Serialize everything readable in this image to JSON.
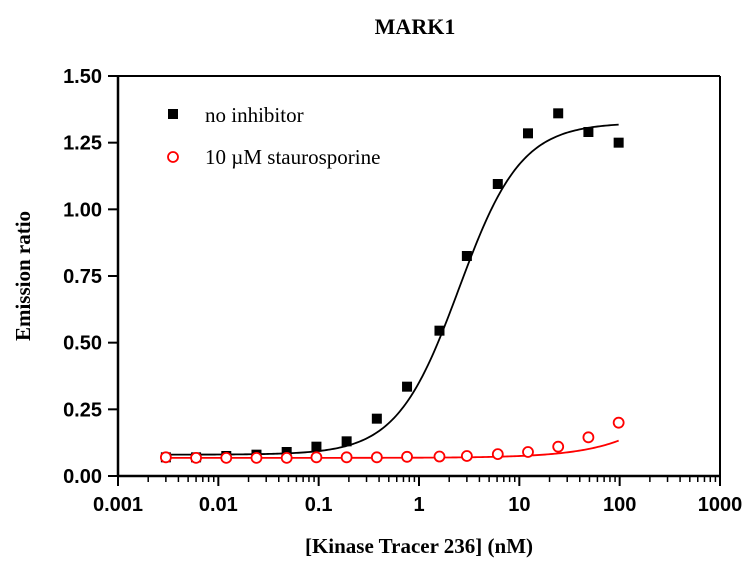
{
  "chart_data": {
    "type": "scatter",
    "title": "MARK1",
    "xlabel": "[Kinase Tracer 236] (nM)",
    "ylabel": "Emission ratio",
    "x_scale": "log",
    "xlim": [
      0.001,
      1000
    ],
    "ylim": [
      0,
      1.5
    ],
    "x_ticks": [
      0.001,
      0.01,
      0.1,
      1,
      10,
      100,
      1000
    ],
    "x_tick_labels": [
      "0.001",
      "0.01",
      "0.1",
      "1",
      "10",
      "100",
      "1000"
    ],
    "y_ticks": [
      0,
      0.25,
      0.5,
      0.75,
      1.0,
      1.25,
      1.5
    ],
    "y_tick_labels": [
      "0.00",
      "0.25",
      "0.50",
      "0.75",
      "1.00",
      "1.25",
      "1.50"
    ],
    "legend_position": "top-left",
    "series": [
      {
        "name": "no inhibitor",
        "marker": "filled-square",
        "color": "#000000",
        "x": [
          0.003,
          0.006,
          0.012,
          0.024,
          0.048,
          0.095,
          0.19,
          0.38,
          0.76,
          1.6,
          3.0,
          6.1,
          12.2,
          24.4,
          48.8,
          97.7
        ],
        "y": [
          0.07,
          0.07,
          0.075,
          0.08,
          0.09,
          0.11,
          0.13,
          0.215,
          0.335,
          0.545,
          0.825,
          1.095,
          1.285,
          1.36,
          1.29,
          1.25
        ],
        "fit": {
          "bottom": 0.08,
          "top": 1.325,
          "ec50": 2.5,
          "hill": 1.4
        }
      },
      {
        "name": "10 µM staurosporine",
        "marker": "open-circle",
        "color": "#ff0000",
        "x": [
          0.003,
          0.006,
          0.012,
          0.024,
          0.048,
          0.095,
          0.19,
          0.38,
          0.76,
          1.6,
          3.0,
          6.1,
          12.2,
          24.4,
          48.8,
          97.7
        ],
        "y": [
          0.07,
          0.068,
          0.068,
          0.068,
          0.068,
          0.07,
          0.07,
          0.07,
          0.072,
          0.073,
          0.075,
          0.082,
          0.09,
          0.11,
          0.145,
          0.2
        ],
        "fit": {
          "bottom": 0.068,
          "top": 1.325,
          "ec50": 1800,
          "hill": 1.0
        }
      }
    ]
  },
  "colors": {
    "axis": "#000000",
    "series_1": "#000000",
    "series_2": "#ff0000"
  }
}
